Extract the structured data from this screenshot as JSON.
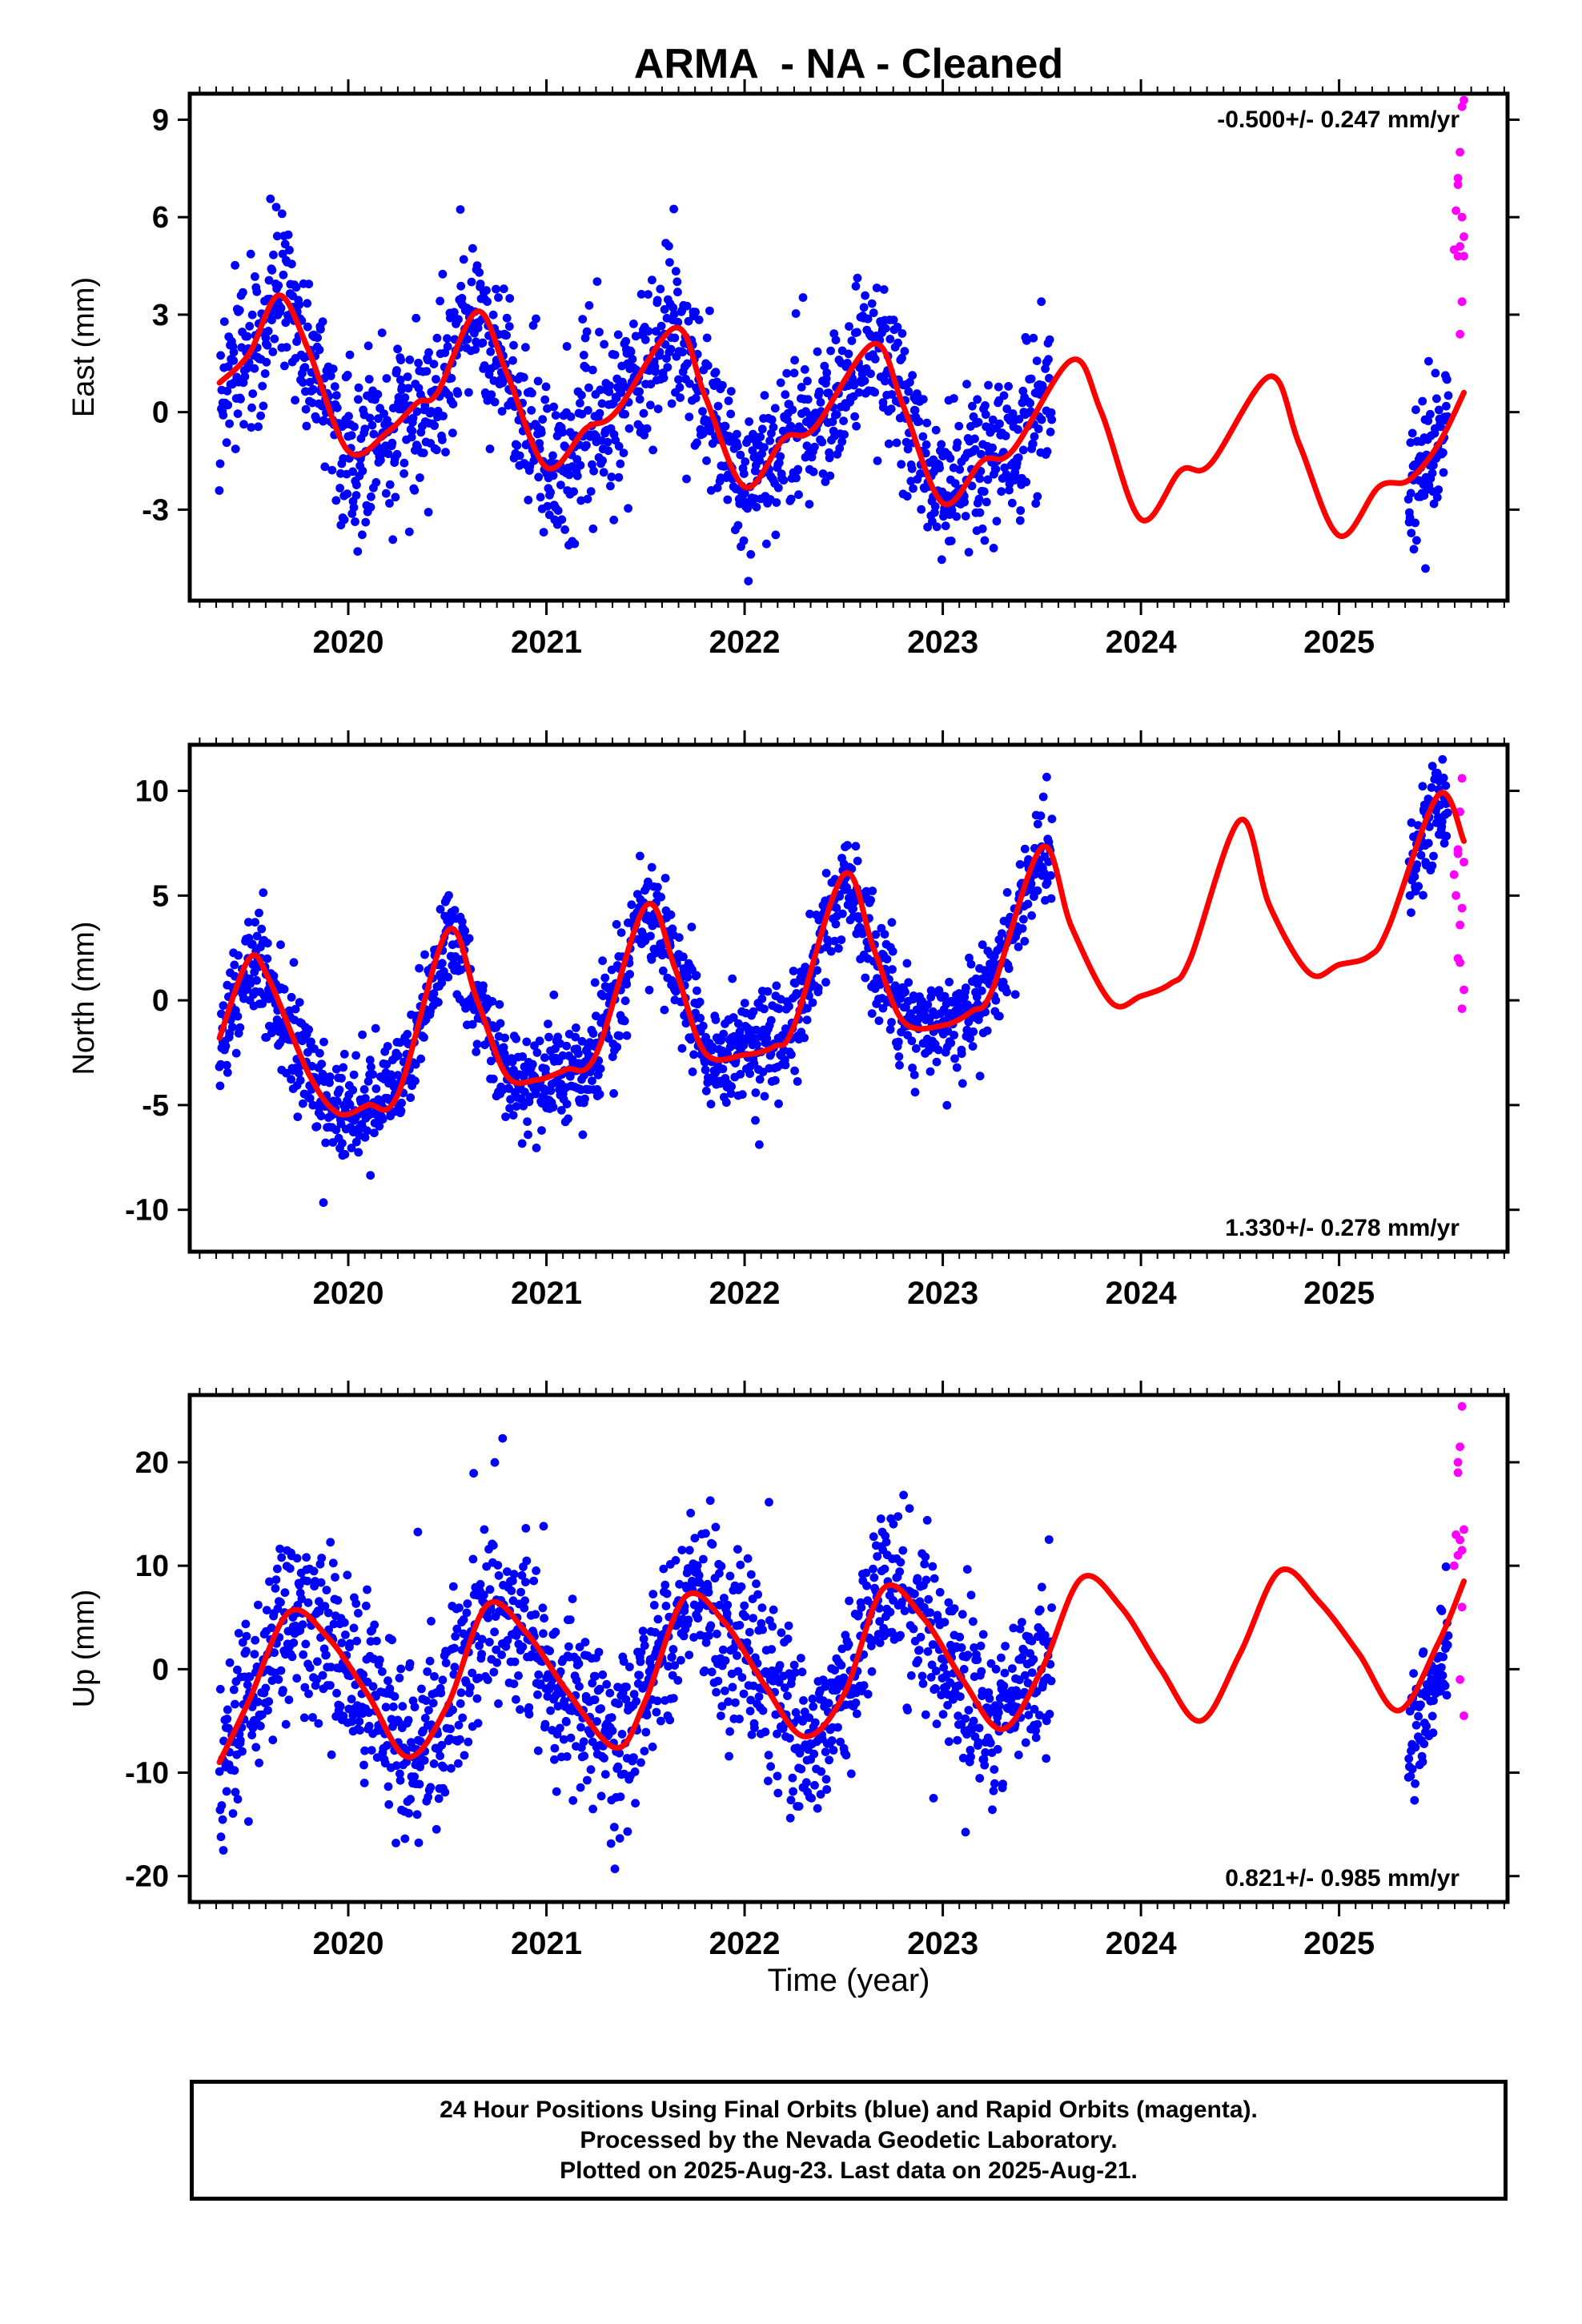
{
  "chart_data": {
    "type": "scatter",
    "title": "ARMA  - NA - Cleaned",
    "xlabel": "Time (year)",
    "xlim": [
      2019.2,
      2025.85
    ],
    "x_ticks": [
      "2020",
      "2021",
      "2022",
      "2023",
      "2024",
      "2025"
    ],
    "colors": {
      "final": "#0000ff",
      "rapid": "#ff00ff",
      "model": "#ff0000"
    },
    "panels": [
      {
        "ylabel": "East (mm)",
        "ylim": [
          -5.8,
          9.8
        ],
        "y_ticks": [
          "9",
          "6",
          "3",
          "0",
          "-3"
        ],
        "rate": "-0.500+/- 0.247 mm/yr",
        "rate_position": "top-right",
        "model_curve": [
          [
            2019.35,
            0.9
          ],
          [
            2019.5,
            1.8
          ],
          [
            2019.65,
            3.6
          ],
          [
            2019.8,
            1.9
          ],
          [
            2020.0,
            -1.2
          ],
          [
            2020.2,
            -0.6
          ],
          [
            2020.35,
            0.3
          ],
          [
            2020.45,
            0.6
          ],
          [
            2020.65,
            3.1
          ],
          [
            2020.8,
            1.2
          ],
          [
            2021.0,
            -1.7
          ],
          [
            2021.2,
            -0.5
          ],
          [
            2021.35,
            0.0
          ],
          [
            2021.65,
            2.6
          ],
          [
            2021.8,
            0.5
          ],
          [
            2022.0,
            -2.3
          ],
          [
            2022.2,
            -0.8
          ],
          [
            2022.35,
            -0.5
          ],
          [
            2022.65,
            2.1
          ],
          [
            2022.8,
            0.2
          ],
          [
            2023.0,
            -2.8
          ],
          [
            2023.2,
            -1.5
          ],
          [
            2023.35,
            -1.2
          ],
          [
            2023.65,
            1.6
          ],
          [
            2023.8,
            0.0
          ],
          [
            2024.0,
            -3.3
          ],
          [
            2024.2,
            -1.8
          ],
          [
            2024.35,
            -1.6
          ],
          [
            2024.65,
            1.1
          ],
          [
            2024.8,
            -1.0
          ],
          [
            2025.0,
            -3.8
          ],
          [
            2025.2,
            -2.3
          ],
          [
            2025.35,
            -2.1
          ],
          [
            2025.5,
            -1.0
          ],
          [
            2025.63,
            0.6
          ]
        ],
        "final_segments": [
          {
            "x0": 2019.35,
            "x1": 2023.55,
            "days": 1500,
            "noise": 1.2,
            "offset": 0.0
          },
          {
            "x0": 2025.35,
            "x1": 2025.55,
            "days": 80,
            "noise": 1.1,
            "offset": 0.0
          }
        ],
        "rapid_points": [
          [
            2025.58,
            5.0
          ],
          [
            2025.59,
            6.2
          ],
          [
            2025.6,
            7.2
          ],
          [
            2025.61,
            8.0
          ],
          [
            2025.62,
            9.4
          ],
          [
            2025.6,
            4.8
          ],
          [
            2025.63,
            5.4
          ],
          [
            2025.62,
            3.4
          ],
          [
            2025.61,
            2.4
          ],
          [
            2025.63,
            9.6
          ],
          [
            2025.6,
            7.0
          ],
          [
            2025.62,
            6.0
          ],
          [
            2025.61,
            5.1
          ],
          [
            2025.63,
            4.8
          ]
        ]
      },
      {
        "ylabel": "North (mm)",
        "ylim": [
          -12,
          12.2
        ],
        "y_ticks": [
          "10",
          "5",
          "0",
          "-5",
          "-10"
        ],
        "rate": "1.330+/- 0.278 mm/yr",
        "rate_position": "bottom-right",
        "model_curve": [
          [
            2019.35,
            -1.8
          ],
          [
            2019.5,
            2.0
          ],
          [
            2019.6,
            1.0
          ],
          [
            2019.8,
            -3.5
          ],
          [
            2019.95,
            -5.4
          ],
          [
            2020.1,
            -5.0
          ],
          [
            2020.25,
            -4.5
          ],
          [
            2020.5,
            3.3
          ],
          [
            2020.65,
            0.0
          ],
          [
            2020.8,
            -3.6
          ],
          [
            2020.95,
            -3.8
          ],
          [
            2021.1,
            -3.3
          ],
          [
            2021.25,
            -2.6
          ],
          [
            2021.5,
            4.5
          ],
          [
            2021.65,
            1.5
          ],
          [
            2021.8,
            -2.5
          ],
          [
            2022.0,
            -2.6
          ],
          [
            2022.15,
            -2.2
          ],
          [
            2022.25,
            -1.2
          ],
          [
            2022.5,
            6.0
          ],
          [
            2022.65,
            2.5
          ],
          [
            2022.8,
            -1.0
          ],
          [
            2023.0,
            -1.2
          ],
          [
            2023.15,
            -0.5
          ],
          [
            2023.25,
            0.5
          ],
          [
            2023.5,
            7.3
          ],
          [
            2023.65,
            3.5
          ],
          [
            2023.85,
            -0.1
          ],
          [
            2024.0,
            0.2
          ],
          [
            2024.15,
            0.8
          ],
          [
            2024.25,
            2.0
          ],
          [
            2024.5,
            8.6
          ],
          [
            2024.65,
            4.5
          ],
          [
            2024.85,
            1.3
          ],
          [
            2025.0,
            1.7
          ],
          [
            2025.15,
            2.1
          ],
          [
            2025.25,
            3.5
          ],
          [
            2025.5,
            9.8
          ],
          [
            2025.63,
            7.6
          ]
        ],
        "final_segments": [
          {
            "x0": 2019.35,
            "x1": 2023.55,
            "days": 1500,
            "noise": 1.25,
            "offset": 0.0
          },
          {
            "x0": 2025.35,
            "x1": 2025.55,
            "days": 80,
            "noise": 1.1,
            "offset": 0.0
          }
        ],
        "rapid_points": [
          [
            2025.58,
            6.0
          ],
          [
            2025.59,
            5.0
          ],
          [
            2025.6,
            7.0
          ],
          [
            2025.61,
            9.0
          ],
          [
            2025.62,
            10.6
          ],
          [
            2025.6,
            2.0
          ],
          [
            2025.63,
            0.5
          ],
          [
            2025.62,
            -0.4
          ],
          [
            2025.61,
            3.6
          ],
          [
            2025.63,
            6.6
          ],
          [
            2025.6,
            7.2
          ],
          [
            2025.62,
            4.4
          ],
          [
            2025.61,
            1.8
          ]
        ]
      },
      {
        "ylabel": "Up (mm)",
        "ylim": [
          -22.5,
          26.5
        ],
        "y_ticks": [
          "20",
          "10",
          "0",
          "-10",
          "-20"
        ],
        "rate": "0.821+/- 0.985 mm/yr",
        "rate_position": "bottom-right",
        "model_curve": [
          [
            2019.35,
            -9.0
          ],
          [
            2019.5,
            -3.0
          ],
          [
            2019.7,
            5.5
          ],
          [
            2019.9,
            3.0
          ],
          [
            2020.1,
            -2.5
          ],
          [
            2020.3,
            -8.5
          ],
          [
            2020.5,
            -3.5
          ],
          [
            2020.7,
            6.2
          ],
          [
            2020.9,
            3.5
          ],
          [
            2021.1,
            -2.0
          ],
          [
            2021.35,
            -7.6
          ],
          [
            2021.5,
            -3.0
          ],
          [
            2021.7,
            7.0
          ],
          [
            2021.9,
            4.5
          ],
          [
            2022.1,
            -1.5
          ],
          [
            2022.3,
            -6.5
          ],
          [
            2022.5,
            -2.5
          ],
          [
            2022.7,
            7.8
          ],
          [
            2022.9,
            5.0
          ],
          [
            2023.1,
            -1.0
          ],
          [
            2023.3,
            -5.8
          ],
          [
            2023.5,
            0.0
          ],
          [
            2023.7,
            8.8
          ],
          [
            2023.9,
            6.0
          ],
          [
            2024.1,
            0.0
          ],
          [
            2024.3,
            -5.0
          ],
          [
            2024.5,
            1.5
          ],
          [
            2024.7,
            9.5
          ],
          [
            2024.9,
            6.5
          ],
          [
            2025.1,
            1.5
          ],
          [
            2025.3,
            -4.0
          ],
          [
            2025.5,
            2.5
          ],
          [
            2025.63,
            8.5
          ]
        ],
        "final_segments": [
          {
            "x0": 2019.35,
            "x1": 2023.55,
            "days": 1500,
            "noise": 4.2,
            "offset": 0.0
          },
          {
            "x0": 2025.35,
            "x1": 2025.55,
            "days": 80,
            "noise": 3.2,
            "offset": -3.0
          }
        ],
        "rapid_points": [
          [
            2025.58,
            10.0
          ],
          [
            2025.59,
            13.0
          ],
          [
            2025.6,
            20.0
          ],
          [
            2025.61,
            21.5
          ],
          [
            2025.62,
            25.4
          ],
          [
            2025.6,
            11.0
          ],
          [
            2025.63,
            13.5
          ],
          [
            2025.62,
            6.0
          ],
          [
            2025.61,
            -1.0
          ],
          [
            2025.63,
            -4.5
          ],
          [
            2025.6,
            19.0
          ],
          [
            2025.62,
            11.5
          ],
          [
            2025.61,
            12.5
          ]
        ]
      }
    ]
  },
  "footer": {
    "line1": "24 Hour Positions Using Final Orbits (blue) and Rapid Orbits (magenta).",
    "line2": "Processed by the Nevada Geodetic Laboratory.",
    "line3": "Plotted on 2025-Aug-23. Last data on 2025-Aug-21."
  }
}
